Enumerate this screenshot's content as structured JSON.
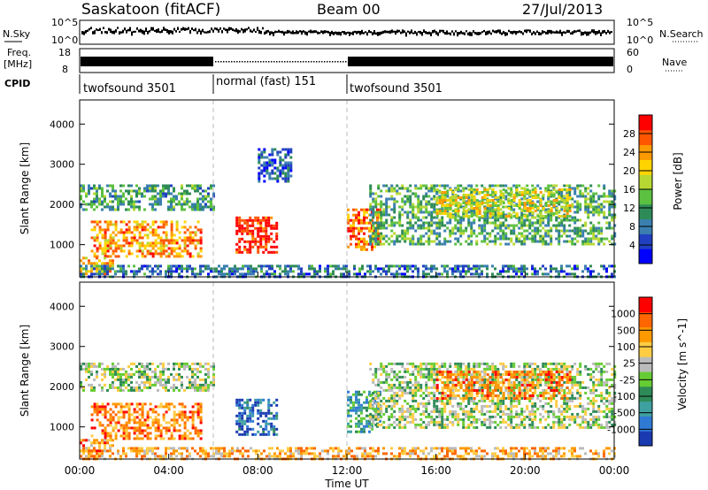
{
  "header": {
    "station": "Saskatoon (fitACF)",
    "beam": "Beam 00",
    "date": "27/Jul/2013"
  },
  "noise_panel": {
    "left_label": "N.Sky",
    "right_label": "N.Search",
    "left_ticks": [
      "10^5",
      "10^0"
    ],
    "right_ticks": [
      "10^5",
      "10^0"
    ]
  },
  "freq_panel": {
    "left_label_1": "Freq.",
    "left_label_2": "[MHz]",
    "right_label": "Nave",
    "left_ticks": [
      "18",
      "8"
    ],
    "right_ticks": [
      "60",
      "0"
    ]
  },
  "cpid_panel": {
    "label": "CPID",
    "segments": [
      {
        "name": "twofsound 3501",
        "start": 0,
        "end": 6
      },
      {
        "name": "normal (fast) 151",
        "start": 6,
        "end": 12
      },
      {
        "name": "twofsound 3501",
        "start": 12,
        "end": 24
      }
    ]
  },
  "chart_data": [
    {
      "type": "heatmap",
      "title": "Power",
      "ylabel": "Slant Range [km]",
      "xlabel": "",
      "x_ticks": [
        "00:00",
        "04:00",
        "08:00",
        "12:00",
        "16:00",
        "20:00",
        "00:00"
      ],
      "xlim": [
        0,
        24
      ],
      "ylim": [
        200,
        4600
      ],
      "y_ticks": [
        1000,
        2000,
        3000,
        4000
      ],
      "colorbar": {
        "label": "Power [dB]",
        "ticks": [
          "4",
          "8",
          "12",
          "16",
          "20",
          "24",
          "28"
        ],
        "range": [
          0,
          31
        ],
        "colors": [
          "#0000ff",
          "#2040c0",
          "#3a7fb0",
          "#2e8b57",
          "#5cc040",
          "#b7d832",
          "#ffd500",
          "#ff9900",
          "#ff5500",
          "#ff0000"
        ]
      },
      "features": [
        {
          "t0": 0.0,
          "t1": 6.0,
          "r0": 1900,
          "r1": 2500,
          "level": 0.35
        },
        {
          "t0": 0.5,
          "t1": 5.5,
          "r0": 700,
          "r1": 1600,
          "level": 0.75
        },
        {
          "t0": 0.0,
          "t1": 1.5,
          "r0": 300,
          "r1": 700,
          "level": 0.7
        },
        {
          "t0": 7.0,
          "t1": 8.8,
          "r0": 800,
          "r1": 1700,
          "level": 0.95
        },
        {
          "t0": 8.0,
          "t1": 9.5,
          "r0": 2600,
          "r1": 3400,
          "level": 0.2
        },
        {
          "t0": 12.0,
          "t1": 13.5,
          "r0": 900,
          "r1": 1900,
          "level": 0.8
        },
        {
          "t0": 13.0,
          "t1": 24.0,
          "r0": 1000,
          "r1": 2500,
          "level": 0.4
        },
        {
          "t0": 16.0,
          "t1": 22.0,
          "r0": 1700,
          "r1": 2400,
          "level": 0.6
        },
        {
          "t0": 0.0,
          "t1": 24.0,
          "r0": 200,
          "r1": 500,
          "level": 0.25
        }
      ]
    },
    {
      "type": "heatmap",
      "title": "Velocity",
      "ylabel": "Slant Range [km]",
      "xlabel": "Time UT",
      "x_ticks": [
        "00:00",
        "04:00",
        "08:00",
        "12:00",
        "16:00",
        "20:00",
        "00:00"
      ],
      "xlim": [
        0,
        24
      ],
      "ylim": [
        200,
        4600
      ],
      "y_ticks": [
        1000,
        2000,
        3000,
        4000
      ],
      "colorbar": {
        "label": "Velocity [m s^-1]",
        "ticks": [
          "1000",
          "500",
          "100",
          "25",
          "-25",
          "-100",
          "-500",
          "-1000"
        ],
        "colors": [
          "#1a3ab0",
          "#2f7bd4",
          "#3fa0a0",
          "#2e8b57",
          "#66cc33",
          "#bbbbbb",
          "#ffcc44",
          "#ff9900",
          "#ff6600",
          "#ff0000"
        ]
      },
      "features": [
        {
          "t0": 0.0,
          "t1": 6.0,
          "r0": 1900,
          "r1": 2600,
          "level": 0.5
        },
        {
          "t0": 0.5,
          "t1": 5.5,
          "r0": 700,
          "r1": 1600,
          "level": 0.8
        },
        {
          "t0": 0.0,
          "t1": 1.5,
          "r0": 300,
          "r1": 700,
          "level": 0.75
        },
        {
          "t0": 7.0,
          "t1": 8.8,
          "r0": 800,
          "r1": 1700,
          "level": 0.15
        },
        {
          "t0": 12.0,
          "t1": 13.5,
          "r0": 900,
          "r1": 1900,
          "level": 0.3
        },
        {
          "t0": 13.0,
          "t1": 24.0,
          "r0": 1000,
          "r1": 2600,
          "level": 0.5
        },
        {
          "t0": 16.0,
          "t1": 22.0,
          "r0": 1700,
          "r1": 2400,
          "level": 0.78
        },
        {
          "t0": 0.0,
          "t1": 24.0,
          "r0": 200,
          "r1": 500,
          "level": 0.72
        }
      ]
    }
  ]
}
